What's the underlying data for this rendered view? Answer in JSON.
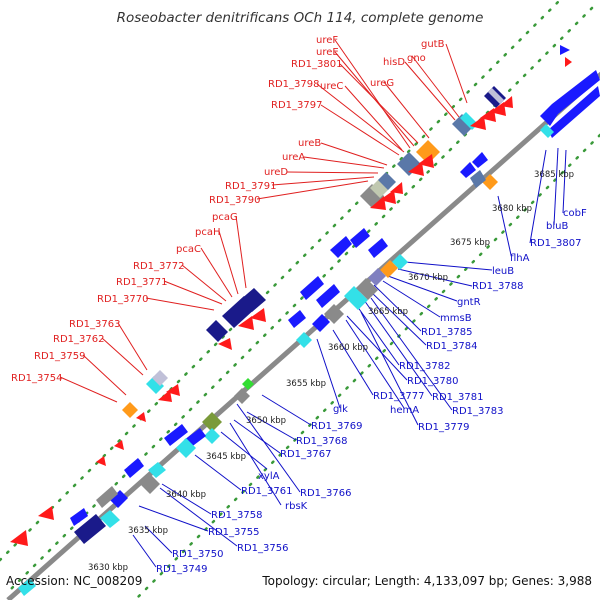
{
  "title": "Roseobacter denitrificans OCh 114, complete genome",
  "footer": {
    "accession": "Accession: NC_008209",
    "summary": "Topology: circular; Length: 4,133,097 bp; Genes: 3,988"
  },
  "colors": {
    "forward_label": "#e02020",
    "reverse_label": "#1010c8",
    "backbone": "#8a8a8a",
    "dots": "#3a9a3a",
    "feature_red": "#ff1a1a",
    "feature_blue": "#1a1aff",
    "feature_navy": "#1a1a8a",
    "feature_cyan": "#33e0e8",
    "feature_orange": "#ff9a1a",
    "feature_gray": "#8a8a8a",
    "feature_steel": "#5a78a8",
    "feature_olive": "#7a9a3a",
    "feature_green": "#33dd33",
    "feature_slate": "#8080c0"
  },
  "scale": {
    "ticks": [
      "3630 kbp",
      "3635 kbp",
      "3640 kbp",
      "3645 kbp",
      "3650 kbp",
      "3655 kbp",
      "3660 kbp",
      "3665 kbp",
      "3670 kbp",
      "3675 kbp",
      "3680 kbp",
      "3685 kbp"
    ]
  },
  "forward_labels": [
    "gutB",
    "ureF",
    "ureE",
    "RD1_3801",
    "hisD",
    "gno",
    "RD1_3798",
    "ureC",
    "ureG",
    "RD1_3797",
    "ureB",
    "ureA",
    "ureD",
    "RD1_3791",
    "RD1_3790",
    "pcaG",
    "pcaH",
    "pcaC",
    "RD1_3772",
    "RD1_3771",
    "RD1_3770",
    "RD1_3763",
    "RD1_3762",
    "RD1_3759",
    "RD1_3754"
  ],
  "reverse_labels": [
    "cobF",
    "bluB",
    "RD1_3807",
    "flhA",
    "leuB",
    "RD1_3788",
    "gntR",
    "mmsB",
    "RD1_3785",
    "RD1_3784",
    "RD1_3782",
    "RD1_3780",
    "RD1_3781",
    "RD1_3783",
    "RD1_3777",
    "hemA",
    "RD1_3779",
    "glk",
    "RD1_3769",
    "RD1_3768",
    "RD1_3767",
    "xylA",
    "RD1_3761",
    "RD1_3766",
    "rbsK",
    "RD1_3758",
    "RD1_3755",
    "RD1_3756",
    "RD1_3750",
    "RD1_3749"
  ]
}
